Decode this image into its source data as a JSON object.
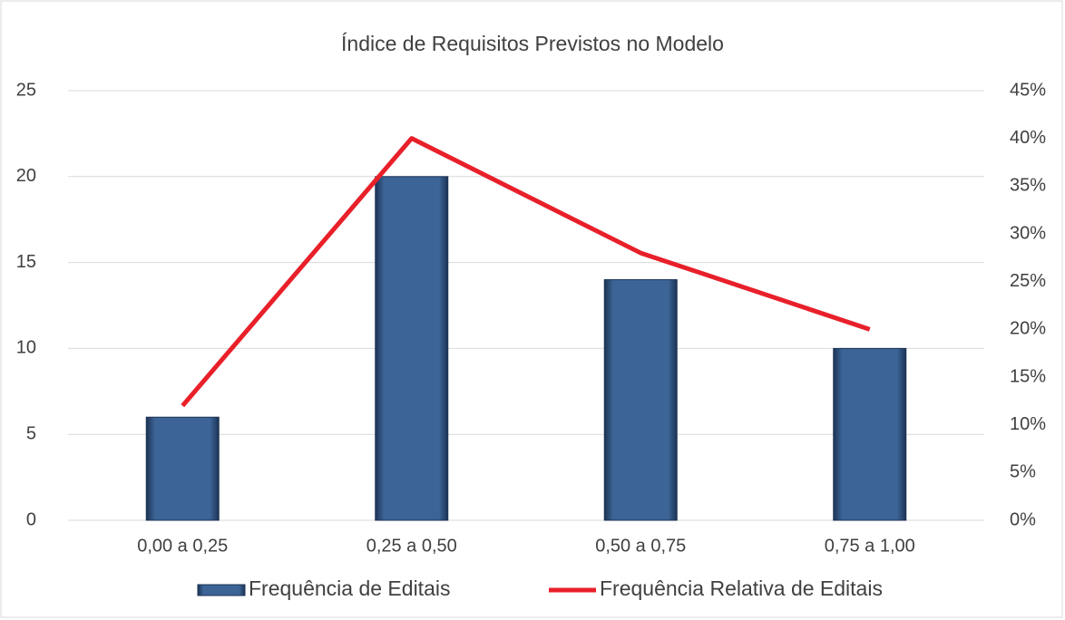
{
  "chart_data": {
    "type": "bar_line",
    "title": "Índice de Requisitos Previstos no Modelo",
    "categories": [
      "0,00 a 0,25",
      "0,25 a 0,50",
      "0,50 a 0,75",
      "0,75 a 1,00"
    ],
    "series": [
      {
        "name": "Frequência de Editais",
        "type": "bar",
        "color": "#3c6496",
        "values": [
          6,
          20,
          14,
          10
        ]
      },
      {
        "name": "Frequência Relativa de Editais",
        "type": "line",
        "color": "#e8202a",
        "axis": "y2",
        "values": [
          12,
          40,
          28,
          20
        ]
      }
    ],
    "ylim": [
      0,
      25
    ],
    "yticks": [
      0,
      5,
      10,
      15,
      20,
      25
    ],
    "y2lim": [
      0,
      45
    ],
    "y2ticks": [
      {
        "value": 0,
        "label": "0%"
      },
      {
        "value": 5,
        "label": "5%"
      },
      {
        "value": 10,
        "label": "10%"
      },
      {
        "value": 15,
        "label": "15%"
      },
      {
        "value": 20,
        "label": "20%"
      },
      {
        "value": 25,
        "label": "25%"
      },
      {
        "value": 30,
        "label": "30%"
      },
      {
        "value": 35,
        "label": "35%"
      },
      {
        "value": 40,
        "label": "40%"
      },
      {
        "value": 45,
        "label": "45%"
      }
    ],
    "grid": true,
    "legend": "bottom"
  }
}
